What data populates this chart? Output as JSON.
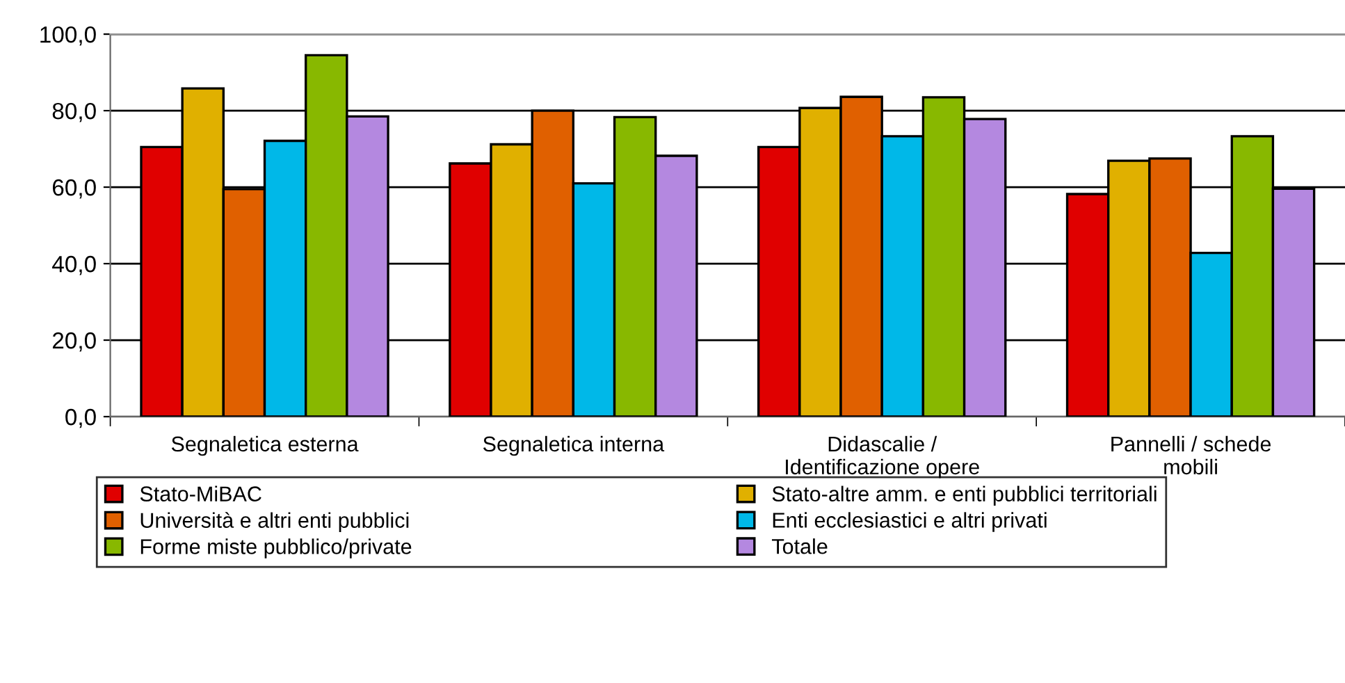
{
  "chart_data": {
    "type": "bar",
    "categories": [
      "Segnaletica esterna",
      "Segnaletica interna",
      "Didascalie /\nIdentificazione opere",
      "Pannelli / schede\nmobili"
    ],
    "series": [
      {
        "name": "Stato-MiBAC",
        "color": "#e00000",
        "values": [
          70.5,
          66.2,
          70.5,
          58.2
        ]
      },
      {
        "name": "Stato-altre amm. e enti pubblici territoriali",
        "color": "#e0b000",
        "values": [
          85.8,
          71.2,
          80.7,
          66.9
        ]
      },
      {
        "name": "Università e altri enti pubblici",
        "color": "#e06000",
        "values": [
          59.5,
          80.0,
          83.6,
          67.5
        ]
      },
      {
        "name": "Enti ecclesiastici e altri privati",
        "color": "#00b8e8",
        "values": [
          72.1,
          61.0,
          73.3,
          42.8
        ]
      },
      {
        "name": "Forme miste pubblico/private",
        "color": "#88b800",
        "values": [
          94.5,
          78.3,
          83.5,
          73.3
        ]
      },
      {
        "name": "Totale",
        "color": "#b488e0",
        "values": [
          78.5,
          68.2,
          77.8,
          59.6
        ]
      }
    ],
    "ylim": [
      0,
      100
    ],
    "yticks": [
      {
        "value": 0,
        "label": "0,0"
      },
      {
        "value": 20,
        "label": "20,0"
      },
      {
        "value": 40,
        "label": "40,0"
      },
      {
        "value": 60,
        "label": "60,0"
      },
      {
        "value": 80,
        "label": "80,0"
      },
      {
        "value": 100,
        "label": "100,0"
      }
    ],
    "grid": "y",
    "legend": "bottom"
  }
}
